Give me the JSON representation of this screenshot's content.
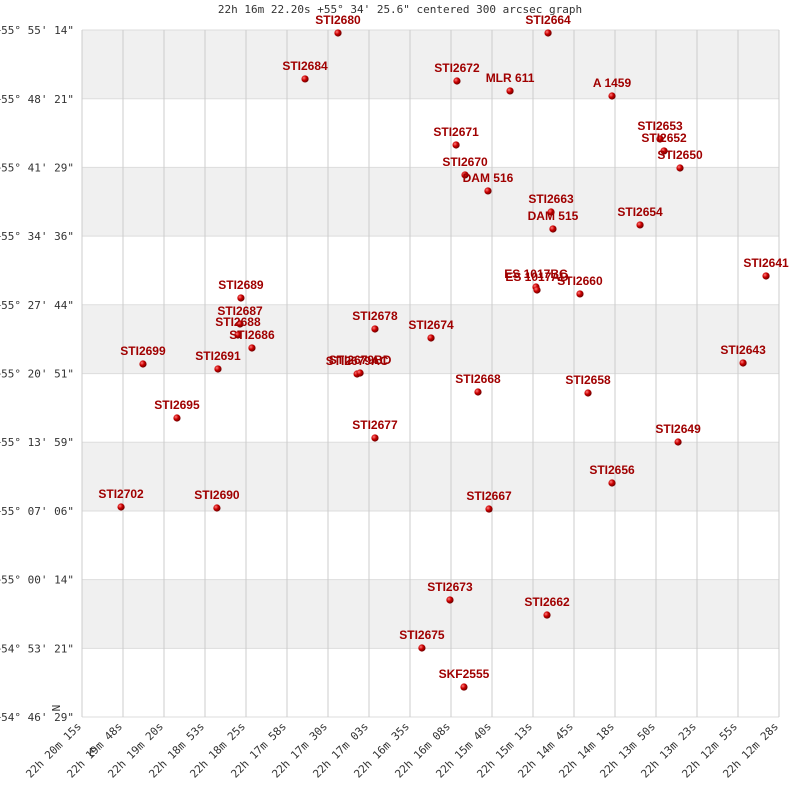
{
  "chart_data": {
    "type": "scatter",
    "title": "22h 16m 22.20s +55° 34' 25.6\" centered 300 arcsec graph",
    "color": "#cc0000",
    "label_color": "#a00000",
    "band_color": "#f0f0f0",
    "grid": true,
    "compass": [
      "N",
      "E"
    ],
    "xlim": [
      1215,
      747.5
    ],
    "xticks": [
      {
        "value": 1215,
        "label": "22h 20m 15s"
      },
      {
        "value": 1187.5,
        "label": "22h 19m 48s"
      },
      {
        "value": 1160,
        "label": "22h 19m 20s"
      },
      {
        "value": 1132.5,
        "label": "22h 18m 53s"
      },
      {
        "value": 1105,
        "label": "22h 18m 25s"
      },
      {
        "value": 1077.5,
        "label": "22h 17m 58s"
      },
      {
        "value": 1050,
        "label": "22h 17m 30s"
      },
      {
        "value": 1022.5,
        "label": "22h 17m 03s"
      },
      {
        "value": 995,
        "label": "22h 16m 35s"
      },
      {
        "value": 967.5,
        "label": "22h 16m 08s"
      },
      {
        "value": 940,
        "label": "22h 15m 40s"
      },
      {
        "value": 912.5,
        "label": "22h 15m 13s"
      },
      {
        "value": 885,
        "label": "22h 14m 45s"
      },
      {
        "value": 857.5,
        "label": "22h 14m 18s"
      },
      {
        "value": 830,
        "label": "22h 13m 50s"
      },
      {
        "value": 802.5,
        "label": "22h 13m 23s"
      },
      {
        "value": 775,
        "label": "22h 12m 55s"
      },
      {
        "value": 747.5,
        "label": "22h 12m 28s"
      }
    ],
    "ylim": [
      54.77472,
      55.92056
    ],
    "yticks": [
      {
        "value": 54.77472,
        "label": "+54° 46' 29\""
      },
      {
        "value": 54.88917,
        "label": "+54° 53' 21\""
      },
      {
        "value": 55.00389,
        "label": "+55° 00' 14\""
      },
      {
        "value": 55.11833,
        "label": "+55° 07' 06\""
      },
      {
        "value": 55.23306,
        "label": "+55° 13' 59\""
      },
      {
        "value": 55.3475,
        "label": "+55° 20' 51\""
      },
      {
        "value": 55.46222,
        "label": "+55° 27' 44\""
      },
      {
        "value": 55.57667,
        "label": "+55° 34' 36\""
      },
      {
        "value": 55.69139,
        "label": "+55° 41' 29\""
      },
      {
        "value": 55.80583,
        "label": "+55° 48' 21\""
      },
      {
        "value": 55.92056,
        "label": "+55° 55' 14\""
      }
    ],
    "labels": [
      "STI2680",
      "STI2664",
      "STI2684",
      "STI2672",
      "MLR 611",
      "A  1459",
      "STI2671",
      "STI2653",
      "STI2652",
      "STI2650",
      "STI2670",
      "DAM 516",
      "STI2663",
      "DAM 515",
      "STI2654",
      "STI2641",
      "ES 1017BC",
      "ES 1017AD",
      "STI2660",
      "STI2689",
      "STI2687",
      "STI2688",
      "STI2686",
      "STI2678",
      "STI2674",
      "STI2699",
      "STI2691",
      "STI2679AC",
      "STI2679BD",
      "STI2643",
      "STI2668",
      "STI2658",
      "STI2695",
      "STI2677",
      "STI2649",
      "STI2656",
      "STI2702",
      "STI2690",
      "STI2667",
      "STI2673",
      "STI2662",
      "STI2675",
      "SKF2555"
    ],
    "x": [
      1043.3,
      902.4,
      1065.4,
      963.5,
      927.9,
      859.5,
      964.1,
      827.3,
      824.6,
      813.9,
      958.1,
      942.7,
      900.4,
      899.1,
      840.7,
      756.2,
      910.5,
      909.8,
      881.0,
      1108.4,
      1109.0,
      1110.4,
      1101.0,
      1018.5,
      980.9,
      1174.1,
      1123.8,
      1030.5,
      1028.5,
      771.6,
      949.4,
      875.6,
      1151.3,
      1018.5,
      815.2,
      859.5,
      1188.8,
      1124.5,
      942.0,
      968.2,
      903.1,
      987.0,
      958.8
    ],
    "values": [
      55.9156,
      55.9156,
      55.8389,
      55.8355,
      55.8189,
      55.8105,
      55.7288,
      55.7388,
      55.7188,
      55.6904,
      55.6788,
      55.6521,
      55.617,
      55.5887,
      55.5954,
      55.5103,
      55.4919,
      55.4869,
      55.4803,
      55.4736,
      55.4302,
      55.4119,
      55.3902,
      55.4219,
      55.4069,
      55.3635,
      55.3552,
      55.3468,
      55.3485,
      55.3652,
      55.3168,
      55.3151,
      55.2734,
      55.2401,
      55.2334,
      55.165,
      55.125,
      55.1233,
      55.1216,
      54.9699,
      54.9448,
      54.8898,
      54.8247
    ]
  }
}
